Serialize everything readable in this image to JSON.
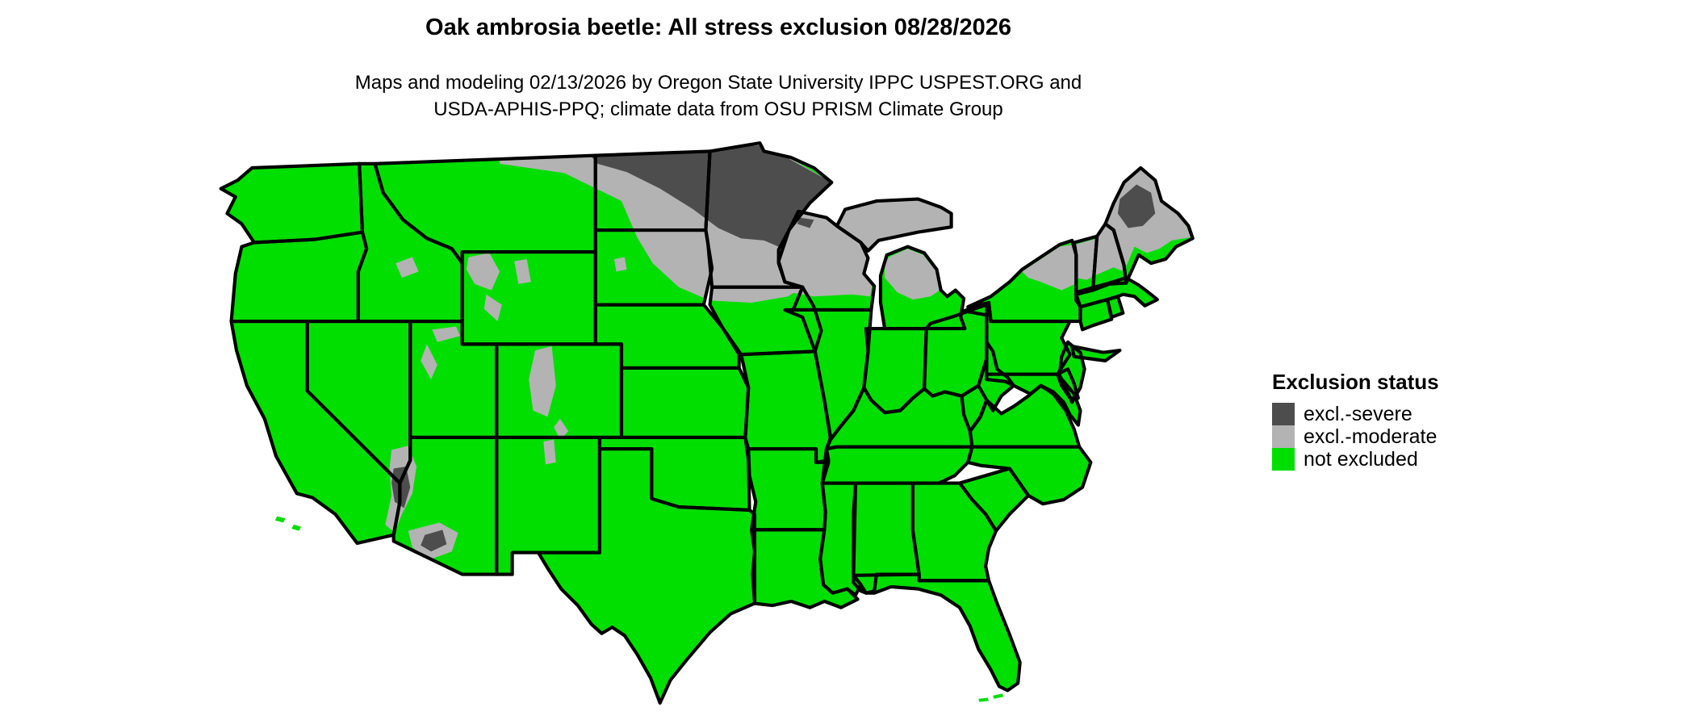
{
  "figure": {
    "title": "Oak ambrosia beetle: All stress exclusion 08/28/2026",
    "subtitle_line1": "Maps and modeling 02/13/2026 by Oregon State University IPPC USPEST.ORG and",
    "subtitle_line2": "USDA-APHIS-PPQ; climate data from OSU PRISM Climate Group"
  },
  "legend": {
    "title": "Exclusion status",
    "items": [
      {
        "key": "severe",
        "label": "excl.-severe",
        "color": "#4d4d4d"
      },
      {
        "key": "moderate",
        "label": "excl.-moderate",
        "color": "#b3b3b3"
      },
      {
        "key": "not_excluded",
        "label": "not excluded",
        "color": "#00df00"
      }
    ]
  },
  "colors": {
    "background": "#ffffff",
    "state_border": "#000000",
    "severe": "#4d4d4d",
    "moderate": "#b3b3b3",
    "not_excluded": "#00df00"
  },
  "map_data": {
    "type": "choropleth",
    "region": "contiguous United States with black state boundaries",
    "status_by_area": [
      {
        "area": "Most of the contiguous U.S.: West Coast, Southwest, southern Plains, Midwest south of Wisconsin, entire South and East Coast",
        "status": "not excluded"
      },
      {
        "area": "Northern Minnesota and a strip along the northern North Dakota border",
        "status": "excl.-severe"
      },
      {
        "area": "Northeastern Montana edge, most of North Dakota, eastern South Dakota, southern Minnesota, most of Wisconsin, Upper Peninsula and northern Lower Michigan",
        "status": "excl.-moderate"
      },
      {
        "area": "Adirondacks of New York, most of Vermont and New Hampshire, most of Maine (coast remains green)",
        "status": "excl.-moderate"
      },
      {
        "area": "Interior northwestern Maine pocket",
        "status": "excl.-severe"
      },
      {
        "area": "High-elevation Rocky Mountain patches: NW Wyoming, Bighorns, central Colorado, Utah ranges, central Idaho, northern New Mexico, Black Hills",
        "status": "excl.-moderate"
      },
      {
        "area": "California-Nevada-Arizona Colorado River junction and southwestern Arizona",
        "status": "excl.-moderate with excl.-severe cores"
      }
    ]
  }
}
